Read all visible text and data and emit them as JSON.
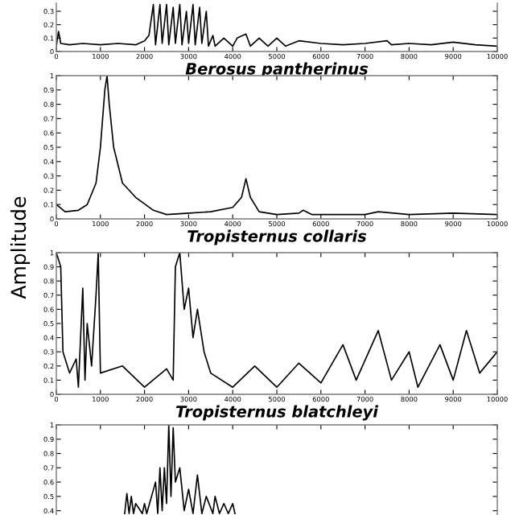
{
  "chart_data": [
    {
      "type": "line",
      "xlabel": "Berosus pantherinus",
      "xlim": [
        0,
        10000
      ],
      "xticks": [
        0,
        1000,
        2000,
        3000,
        4000,
        5000,
        6000,
        7000,
        8000,
        9000,
        10000
      ],
      "ylim": [
        0,
        0.36
      ],
      "yticks": [
        0,
        0.1,
        0.2,
        0.3
      ],
      "grid": false,
      "legend": false,
      "series": [
        {
          "color": "#000000",
          "x": [
            0,
            50,
            100,
            300,
            600,
            1000,
            1400,
            1800,
            2000,
            2100,
            2200,
            2250,
            2350,
            2400,
            2500,
            2550,
            2650,
            2700,
            2800,
            2850,
            2950,
            3000,
            3100,
            3150,
            3250,
            3300,
            3400,
            3450,
            3550,
            3600,
            3800,
            4000,
            4100,
            4300,
            4400,
            4600,
            4800,
            5000,
            5200,
            5500,
            6000,
            6500,
            7000,
            7500,
            7600,
            8000,
            8500,
            9000,
            9500,
            10000
          ],
          "values": [
            0.04,
            0.15,
            0.06,
            0.05,
            0.06,
            0.05,
            0.06,
            0.05,
            0.08,
            0.12,
            0.35,
            0.05,
            0.35,
            0.06,
            0.35,
            0.05,
            0.33,
            0.06,
            0.35,
            0.05,
            0.3,
            0.06,
            0.35,
            0.05,
            0.33,
            0.06,
            0.3,
            0.04,
            0.12,
            0.04,
            0.1,
            0.04,
            0.1,
            0.13,
            0.04,
            0.1,
            0.04,
            0.1,
            0.04,
            0.08,
            0.06,
            0.05,
            0.06,
            0.08,
            0.05,
            0.06,
            0.05,
            0.07,
            0.05,
            0.04
          ]
        }
      ]
    },
    {
      "type": "line",
      "xlabel": "Tropisternus collaris",
      "ylabel": "Amplitude",
      "xlim": [
        0,
        10000
      ],
      "xticks": [
        0,
        1000,
        2000,
        3000,
        4000,
        5000,
        6000,
        7000,
        8000,
        9000,
        10000
      ],
      "ylim": [
        0,
        1
      ],
      "yticks": [
        0,
        0.1,
        0.2,
        0.3,
        0.4,
        0.5,
        0.6,
        0.7,
        0.8,
        0.9,
        1
      ],
      "grid": false,
      "legend": false,
      "series": [
        {
          "color": "#000000",
          "x": [
            0,
            200,
            500,
            700,
            900,
            1000,
            1100,
            1150,
            1200,
            1300,
            1500,
            1800,
            2200,
            2500,
            3000,
            3500,
            4000,
            4200,
            4300,
            4400,
            4600,
            5000,
            5500,
            5600,
            5800,
            7000,
            7300,
            8000,
            9000,
            10000
          ],
          "values": [
            0.1,
            0.05,
            0.06,
            0.1,
            0.25,
            0.5,
            0.9,
            1.0,
            0.8,
            0.5,
            0.25,
            0.15,
            0.06,
            0.03,
            0.04,
            0.05,
            0.08,
            0.15,
            0.28,
            0.15,
            0.05,
            0.03,
            0.04,
            0.06,
            0.03,
            0.03,
            0.05,
            0.03,
            0.04,
            0.03
          ]
        }
      ]
    },
    {
      "type": "line",
      "xlabel": "Tropisternus blatchleyi",
      "xlim": [
        0,
        10000
      ],
      "xticks": [
        0,
        1000,
        2000,
        3000,
        4000,
        5000,
        6000,
        7000,
        8000,
        9000,
        10000
      ],
      "ylim": [
        0,
        1
      ],
      "yticks": [
        0,
        0.1,
        0.2,
        0.3,
        0.4,
        0.5,
        0.6,
        0.7,
        0.8,
        0.9,
        1
      ],
      "grid": false,
      "legend": false,
      "series": [
        {
          "color": "#000000",
          "x": [
            0,
            100,
            150,
            300,
            450,
            500,
            600,
            650,
            700,
            800,
            900,
            950,
            1000,
            1500,
            2000,
            2500,
            2650,
            2700,
            2800,
            2900,
            3000,
            3100,
            3200,
            3350,
            3500,
            4000,
            4500,
            5000,
            5500,
            6000,
            6500,
            6800,
            7300,
            7600,
            8000,
            8200,
            8700,
            9000,
            9300,
            9600,
            10000
          ],
          "values": [
            1.0,
            0.9,
            0.3,
            0.15,
            0.25,
            0.05,
            0.75,
            0.1,
            0.5,
            0.2,
            0.7,
            1.0,
            0.15,
            0.2,
            0.05,
            0.18,
            0.1,
            0.9,
            1.0,
            0.6,
            0.75,
            0.4,
            0.6,
            0.3,
            0.15,
            0.05,
            0.2,
            0.05,
            0.22,
            0.08,
            0.35,
            0.1,
            0.45,
            0.1,
            0.3,
            0.05,
            0.35,
            0.1,
            0.45,
            0.15,
            0.3
          ]
        }
      ]
    },
    {
      "type": "line",
      "tick_labels": "y",
      "xlim": [
        0,
        10000
      ],
      "xticks": [
        0,
        1000,
        2000,
        3000,
        4000,
        5000,
        6000,
        7000,
        8000,
        9000,
        10000
      ],
      "ylim": [
        0.37,
        1
      ],
      "yticks": [
        0.4,
        0.5,
        0.6,
        0.7,
        0.8,
        0.9,
        1
      ],
      "grid": false,
      "legend": false,
      "series": [
        {
          "color": "#000000",
          "x": [
            1550,
            1600,
            1650,
            1700,
            1750,
            1800,
            1950,
            2000,
            2050,
            2250,
            2300,
            2350,
            2400,
            2450,
            2500,
            2550,
            2600,
            2650,
            2700,
            2800,
            2900,
            3000,
            3100,
            3200,
            3300,
            3400,
            3550,
            3600,
            3700,
            3800,
            3900,
            4000,
            4050
          ],
          "values": [
            0.38,
            0.52,
            0.38,
            0.5,
            0.38,
            0.45,
            0.38,
            0.45,
            0.38,
            0.6,
            0.38,
            0.7,
            0.4,
            0.7,
            0.45,
            1.0,
            0.5,
            0.98,
            0.6,
            0.7,
            0.4,
            0.55,
            0.38,
            0.65,
            0.38,
            0.5,
            0.38,
            0.5,
            0.38,
            0.45,
            0.38,
            0.45,
            0.38
          ]
        }
      ]
    }
  ]
}
